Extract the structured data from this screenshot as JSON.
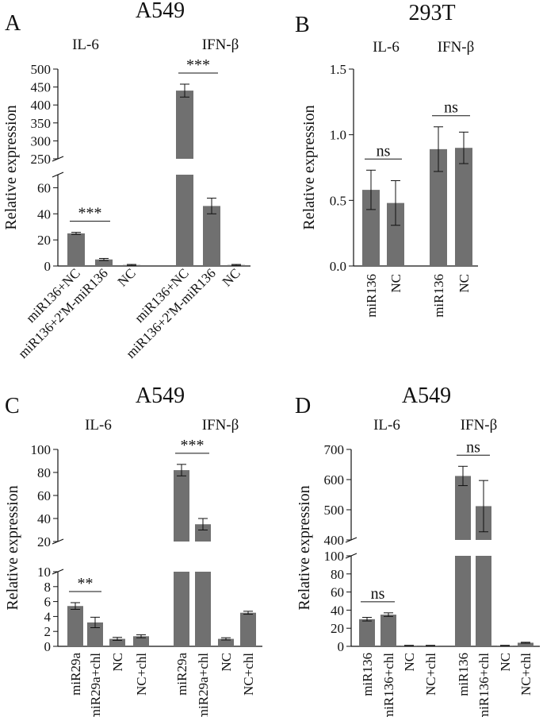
{
  "figure": {
    "panels": [
      "A",
      "B",
      "C",
      "D"
    ]
  },
  "chart_data": [
    {
      "panel": "A",
      "type": "bar",
      "title": "A549",
      "ylabel": "Relative expression",
      "axis_break": true,
      "segments": [
        {
          "range": [
            0,
            70
          ],
          "ticks": [
            0,
            20,
            40,
            60
          ],
          "tick_labels": [
            "0",
            "20",
            "40",
            "60"
          ]
        },
        {
          "range": [
            250,
            500
          ],
          "ticks": [
            250,
            300,
            350,
            400,
            450,
            500
          ],
          "tick_labels": [
            "250",
            "300",
            "350",
            "400",
            "450",
            "500"
          ]
        }
      ],
      "groups": [
        {
          "label": "IL-6",
          "categories": [
            "miR136+NC",
            "miR136+2'M-miR136",
            "NC"
          ],
          "values": [
            25,
            5,
            0.8
          ],
          "errors": [
            0.8,
            0.8,
            0.4
          ],
          "significance": [
            {
              "from": 0,
              "to": 1,
              "label": "***"
            }
          ]
        },
        {
          "label": "IFN-β",
          "categories": [
            "miR136+NC",
            "miR136+2'M-miR136",
            "NC"
          ],
          "values": [
            440,
            46,
            0.8
          ],
          "errors": [
            18,
            6,
            0.4
          ],
          "significance": [
            {
              "from": 0,
              "to": 1,
              "label": "***"
            }
          ]
        }
      ]
    },
    {
      "panel": "B",
      "type": "bar",
      "title": "293T",
      "ylabel": "Relative expression",
      "axis_break": false,
      "segments": [
        {
          "range": [
            0,
            1.5
          ],
          "ticks": [
            0,
            0.5,
            1.0,
            1.5
          ],
          "tick_labels": [
            "0.0",
            "0.5",
            "1.0",
            "1.5"
          ]
        }
      ],
      "groups": [
        {
          "label": "IL-6",
          "categories": [
            "miR136",
            "NC"
          ],
          "values": [
            0.58,
            0.48
          ],
          "errors": [
            0.15,
            0.17
          ],
          "significance": [
            {
              "from": 0,
              "to": 1,
              "label": "ns"
            }
          ]
        },
        {
          "label": "IFN-β",
          "categories": [
            "miR136",
            "NC"
          ],
          "values": [
            0.89,
            0.9
          ],
          "errors": [
            0.17,
            0.12
          ],
          "significance": [
            {
              "from": 0,
              "to": 1,
              "label": "ns"
            }
          ]
        }
      ]
    },
    {
      "panel": "C",
      "type": "bar",
      "title": "A549",
      "ylabel": "Relative expression",
      "axis_break": true,
      "segments": [
        {
          "range": [
            0,
            10
          ],
          "ticks": [
            0,
            2,
            4,
            6,
            8,
            10
          ],
          "tick_labels": [
            "0",
            "2",
            "4",
            "6",
            "8",
            "10"
          ]
        },
        {
          "range": [
            20,
            100
          ],
          "ticks": [
            20,
            40,
            60,
            80,
            100
          ],
          "tick_labels": [
            "20",
            "40",
            "60",
            "80",
            "100"
          ]
        }
      ],
      "groups": [
        {
          "label": "IL-6",
          "categories": [
            "miR29a",
            "miR29a+chl",
            "NC",
            "NC+chl"
          ],
          "values": [
            5.4,
            3.2,
            1.0,
            1.35
          ],
          "errors": [
            0.45,
            0.7,
            0.2,
            0.2
          ],
          "significance": [
            {
              "from": 0,
              "to": 1,
              "label": "**"
            }
          ]
        },
        {
          "label": "IFN-β",
          "categories": [
            "miR29a",
            "miR29a+chl",
            "NC",
            "NC+chl"
          ],
          "values": [
            82,
            35,
            1.0,
            4.5
          ],
          "errors": [
            5,
            5,
            0.15,
            0.2
          ],
          "significance": [
            {
              "from": 0,
              "to": 1,
              "label": "***"
            }
          ]
        }
      ]
    },
    {
      "panel": "D",
      "type": "bar",
      "title": "A549",
      "ylabel": "Relative expression",
      "axis_break": true,
      "segments": [
        {
          "range": [
            0,
            100
          ],
          "ticks": [
            0,
            20,
            40,
            60,
            80,
            100
          ],
          "tick_labels": [
            "0",
            "20",
            "40",
            "60",
            "80",
            "100"
          ]
        },
        {
          "range": [
            400,
            700
          ],
          "ticks": [
            400,
            500,
            600,
            700
          ],
          "tick_labels": [
            "400",
            "500",
            "600",
            "700"
          ]
        }
      ],
      "groups": [
        {
          "label": "IL-6",
          "categories": [
            "miR136",
            "miR136+chl",
            "NC",
            "NC+chl"
          ],
          "values": [
            30,
            35,
            0.8,
            0.8
          ],
          "errors": [
            2,
            2,
            0.3,
            0.3
          ],
          "significance": [
            {
              "from": 0,
              "to": 1,
              "label": "ns"
            }
          ]
        },
        {
          "label": "IFN-β",
          "categories": [
            "miR136",
            "miR136+chl",
            "NC",
            "NC+chl"
          ],
          "values": [
            612,
            512,
            0.8,
            4
          ],
          "errors": [
            32,
            85,
            0.3,
            0.5
          ],
          "significance": [
            {
              "from": 0,
              "to": 1,
              "label": "ns"
            }
          ]
        }
      ]
    }
  ]
}
